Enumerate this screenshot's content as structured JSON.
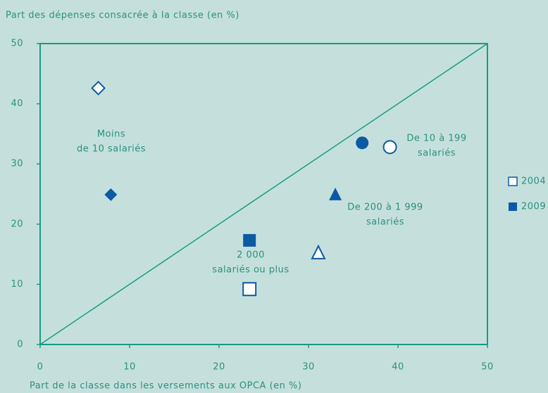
{
  "chart_data": {
    "type": "scatter",
    "y_label": "Part des dépenses consacrée à la classe (en %)",
    "x_label": "Part de la classe dans les versements aux OPCA (en %)",
    "xlim": [
      0,
      50
    ],
    "xticks": [
      0,
      10,
      20,
      30,
      40,
      50
    ],
    "ylim": [
      0,
      50
    ],
    "yticks": [
      0,
      10,
      20,
      30,
      40,
      50
    ],
    "diagonal": true,
    "markers": [
      "diamond",
      "circle",
      "triangle",
      "square"
    ],
    "point_labels": [
      [
        "Moins",
        "de 10 salariés"
      ],
      [
        "De 10 à 199",
        "salariés"
      ],
      [
        "De 200 à 1 999",
        "salariés"
      ],
      [
        "2 000",
        "salariés ou plus"
      ]
    ],
    "series": [
      {
        "name": "2004",
        "color": "#0b5aa3",
        "filled": false,
        "x": [
          6.5,
          39.1,
          31.1,
          23.4
        ],
        "values": [
          42.6,
          32.8,
          15.2,
          9.2
        ]
      },
      {
        "name": "2009",
        "color": "#0b5aa3",
        "filled": true,
        "x": [
          7.9,
          36.0,
          33.0,
          23.4
        ],
        "values": [
          24.9,
          33.5,
          24.9,
          17.3
        ]
      }
    ],
    "legend": "right"
  }
}
